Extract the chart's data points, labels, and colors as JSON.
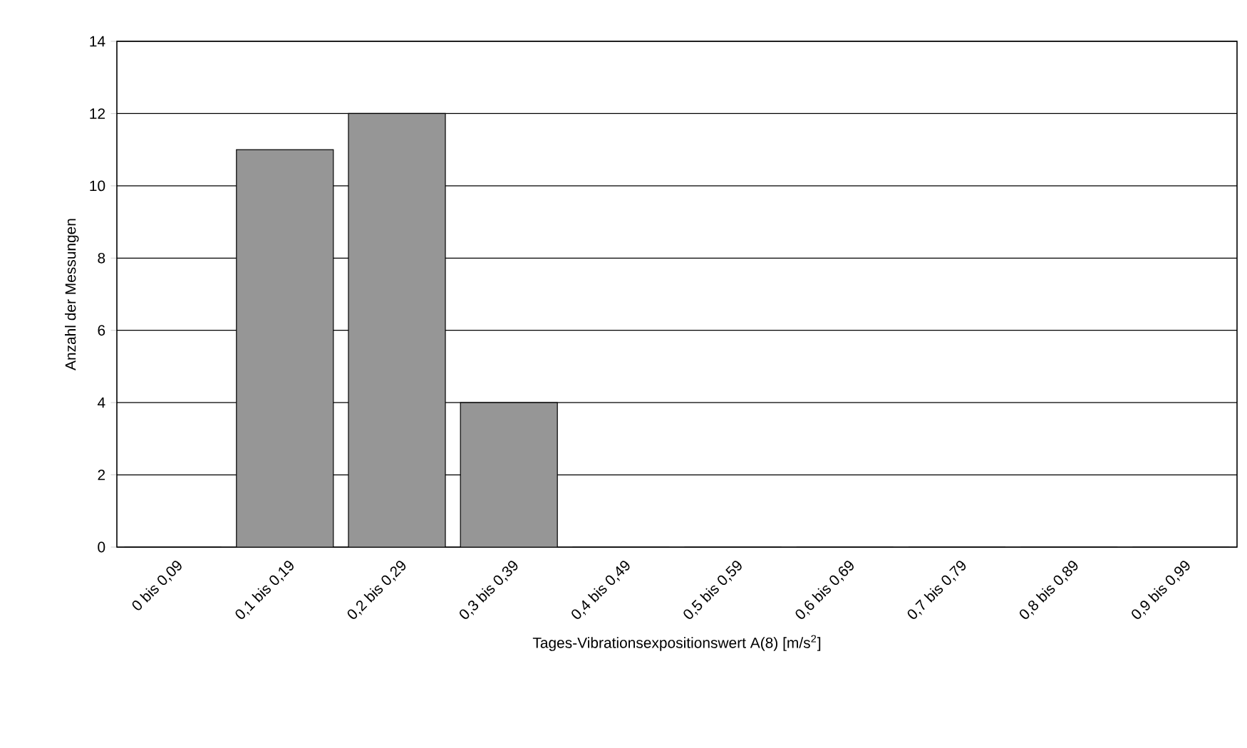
{
  "chart_data": {
    "type": "bar",
    "xlabel": "Tages-Vibrationsexpositionswert A(8) [m/s$^{2}$]",
    "ylabel": "Anzahl der Messungen",
    "categories": [
      "0 bis 0,09",
      "0,1 bis 0,19",
      "0,2 bis 0,29",
      "0,3 bis 0,39",
      "0,4 bis 0,49",
      "0,5 bis 0,59",
      "0,6 bis 0,69",
      "0,7 bis 0,79",
      "0,8 bis 0,89",
      "0,9 bis 0,99"
    ],
    "values": [
      0,
      11,
      12,
      4,
      0,
      0,
      0,
      0,
      0,
      0
    ],
    "color": "#969696",
    "ylim": [
      0,
      14
    ],
    "yticks": [
      0,
      2,
      4,
      6,
      8,
      10,
      12,
      14
    ],
    "grid": "y"
  }
}
